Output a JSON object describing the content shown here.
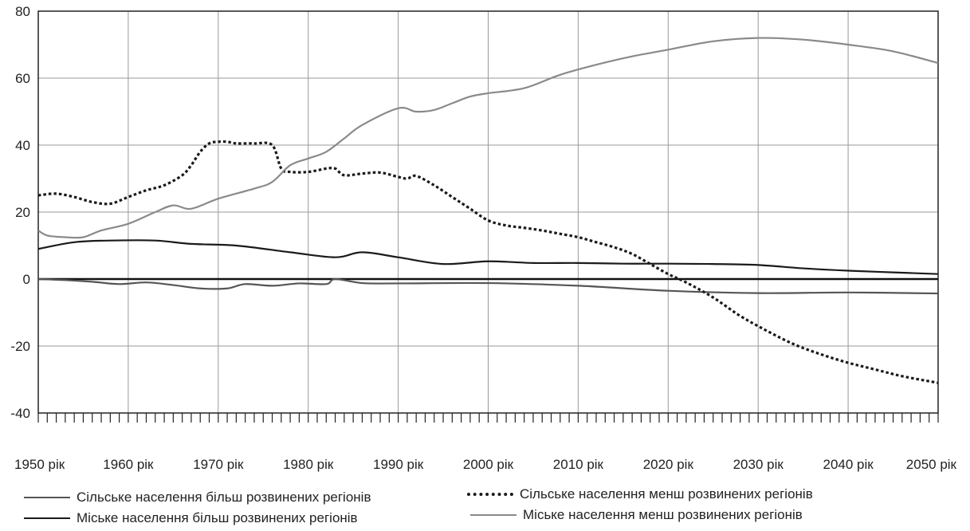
{
  "chart_data": {
    "type": "line",
    "title": "",
    "xlabel": "",
    "ylabel": "",
    "xlim": [
      1950,
      2050
    ],
    "ylim": [
      -40,
      80
    ],
    "y_ticks": [
      -40,
      -20,
      0,
      20,
      40,
      60,
      80
    ],
    "x_tick_labels": [
      "1950 рік",
      "1960 рік",
      "1970 рік",
      "1980 рік",
      "1990 рік",
      "2000 рік",
      "2010 рік",
      "2020 рік",
      "2030 рік",
      "2040 рік",
      "2050 рік"
    ],
    "grid": true,
    "legend_position": "bottom",
    "series": [
      {
        "name": "Сільське населення більш розвинених регіонів",
        "color": "#555555",
        "style": "solid",
        "x": [
          1950,
          1953,
          1956,
          1959,
          1962,
          1965,
          1968,
          1971,
          1973,
          1976,
          1979,
          1982,
          1983,
          1986,
          1990,
          2000,
          2010,
          2020,
          2030,
          2040,
          2050
        ],
        "y": [
          0,
          -0.3,
          -0.8,
          -1.5,
          -1,
          -1.8,
          -2.8,
          -2.8,
          -1.5,
          -2,
          -1.3,
          -1.5,
          0,
          -1.2,
          -1.3,
          -1.2,
          -2,
          -3.5,
          -4.2,
          -4,
          -4.3
        ]
      },
      {
        "name": "Міське населення більш розвинених регіонів",
        "color": "#1a1a1a",
        "style": "solid",
        "x": [
          1950,
          1954,
          1958,
          1963,
          1967,
          1972,
          1978,
          1983,
          1986,
          1990,
          1995,
          2000,
          2005,
          2010,
          2015,
          2020,
          2025,
          2030,
          2035,
          2040,
          2045,
          2050
        ],
        "y": [
          9,
          11,
          11.5,
          11.5,
          10.5,
          10,
          8,
          6.5,
          8,
          6.5,
          4.5,
          5.3,
          4.8,
          4.8,
          4.6,
          4.6,
          4.5,
          4.2,
          3.2,
          2.5,
          2,
          1.5
        ]
      },
      {
        "name": "Сільське населення менш розвинених регіонів",
        "color": "#1a1a1a",
        "style": "dotted",
        "x": [
          1950,
          1952,
          1954,
          1956,
          1958,
          1960,
          1962,
          1964,
          1966,
          1967,
          1968,
          1969,
          1970,
          1971,
          1972,
          1974,
          1976,
          1977,
          1978,
          1980,
          1982,
          1983,
          1984,
          1986,
          1988,
          1990,
          1991,
          1992,
          1994,
          1996,
          1998,
          2000,
          2002,
          2004,
          2006,
          2008,
          2010,
          2012,
          2014,
          2016,
          2018,
          2020,
          2022,
          2025,
          2028,
          2031,
          2034,
          2037,
          2040,
          2043,
          2046,
          2050
        ],
        "y": [
          25,
          25.5,
          24.5,
          23,
          22.5,
          24.5,
          26.5,
          28,
          31,
          34,
          38,
          40.5,
          41,
          41,
          40.5,
          40.5,
          40,
          33,
          32,
          32,
          33,
          33,
          31,
          31.5,
          31.8,
          30.5,
          30,
          30.8,
          28,
          24.5,
          21,
          17.5,
          16,
          15.3,
          14.5,
          13.5,
          12.5,
          11,
          9.5,
          7.5,
          4.5,
          1.5,
          -1,
          -5.5,
          -11,
          -15.5,
          -19.5,
          -22.5,
          -25,
          -27,
          -29,
          -31
        ]
      },
      {
        "name": "Міське населення менш розвинених регіонів",
        "color": "#8a8a8a",
        "style": "solid",
        "x": [
          1950,
          1951,
          1953,
          1955,
          1957,
          1960,
          1963,
          1965,
          1967,
          1970,
          1974,
          1976,
          1978,
          1980,
          1982,
          1984,
          1986,
          1990,
          1992,
          1994,
          1996,
          1998,
          2000,
          2004,
          2008,
          2012,
          2016,
          2020,
          2025,
          2030,
          2035,
          2040,
          2045,
          2050
        ],
        "y": [
          14.5,
          13,
          12.5,
          12.5,
          14.5,
          16.5,
          20,
          22,
          21,
          24,
          27,
          29,
          34,
          36,
          38,
          42,
          46,
          51,
          50,
          50.5,
          52.5,
          54.5,
          55.5,
          57,
          61,
          64,
          66.5,
          68.5,
          71,
          72,
          71.5,
          70,
          68,
          64.5
        ]
      }
    ],
    "legend": [
      "Сільське населення більш розвинених регіонів",
      "Сільське населення менш розвинених регіонів",
      "Міське населення більш розвинених регіонів",
      "Міське населення менш розвинених регіонів"
    ]
  }
}
